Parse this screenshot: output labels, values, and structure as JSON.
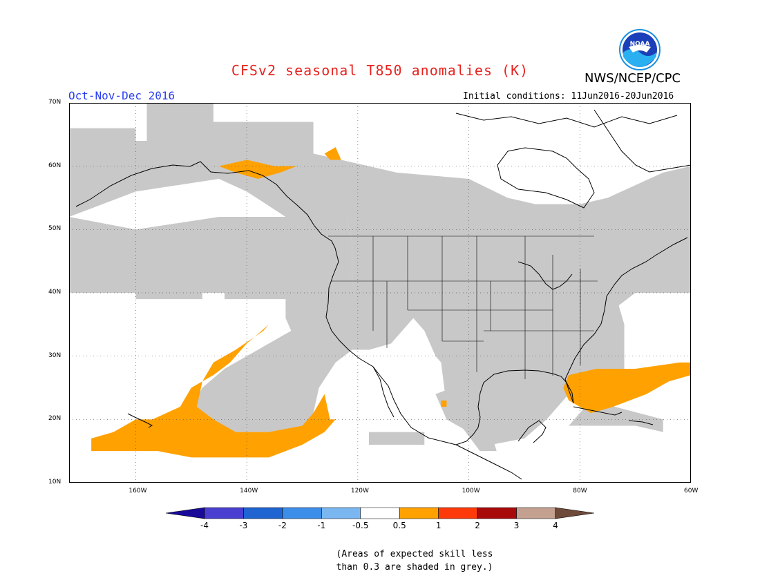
{
  "header": {
    "title": "CFSv2 seasonal T850 anomalies (K)",
    "agency": "NWS/NCEP/CPC",
    "period": "Oct-Nov-Dec 2016",
    "initial_conditions": "Initial conditions: 11Jun2016-20Jun2016"
  },
  "logo": {
    "icon": "noaa-logo-icon",
    "text": "NOAA"
  },
  "map": {
    "lon_range": [
      -172,
      -60
    ],
    "lat_range": [
      10,
      70
    ],
    "lat_labels": [
      "70N",
      "60N",
      "50N",
      "40N",
      "30N",
      "20N",
      "10N"
    ],
    "lon_labels": [
      "160W",
      "140W",
      "120W",
      "100W",
      "80W",
      "60W"
    ],
    "colors": {
      "grey": "#c8c8c8",
      "orange": "#ffa100",
      "land_border": "#000000"
    }
  },
  "colorbar": {
    "labels": [
      "-4",
      "-3",
      "-2",
      "-1",
      "-0.5",
      "0.5",
      "1",
      "2",
      "3",
      "4"
    ],
    "colors": [
      "#1a0a9a",
      "#4a3fd0",
      "#1f64d0",
      "#3c8ee8",
      "#7ab6f0",
      "#ffffff",
      "#ffa100",
      "#ff3a0a",
      "#a80a0a",
      "#c4a090",
      "#6e4a3a"
    ]
  },
  "footnote": {
    "line1": "(Areas of expected skill less",
    "line2": "than 0.3 are shaded in grey.)"
  }
}
